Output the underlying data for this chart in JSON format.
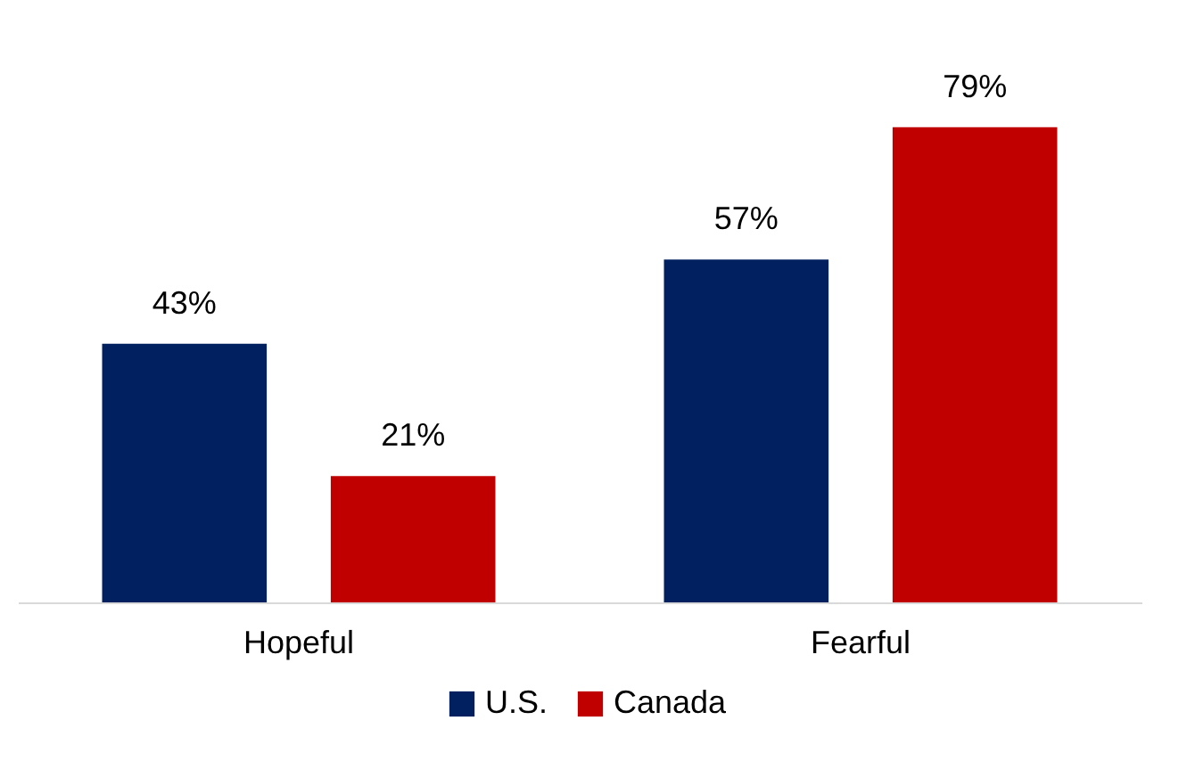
{
  "chart_data": {
    "type": "bar",
    "categories": [
      "Hopeful",
      "Fearful"
    ],
    "series": [
      {
        "name": "U.S.",
        "color": "#002060",
        "values": [
          43,
          57
        ],
        "value_labels": [
          "43%",
          "57%"
        ]
      },
      {
        "name": "Canada",
        "color": "#c00000",
        "values": [
          21,
          79
        ],
        "value_labels": [
          "21%",
          "79%"
        ]
      }
    ],
    "legend": "bottom",
    "grid": false
  }
}
